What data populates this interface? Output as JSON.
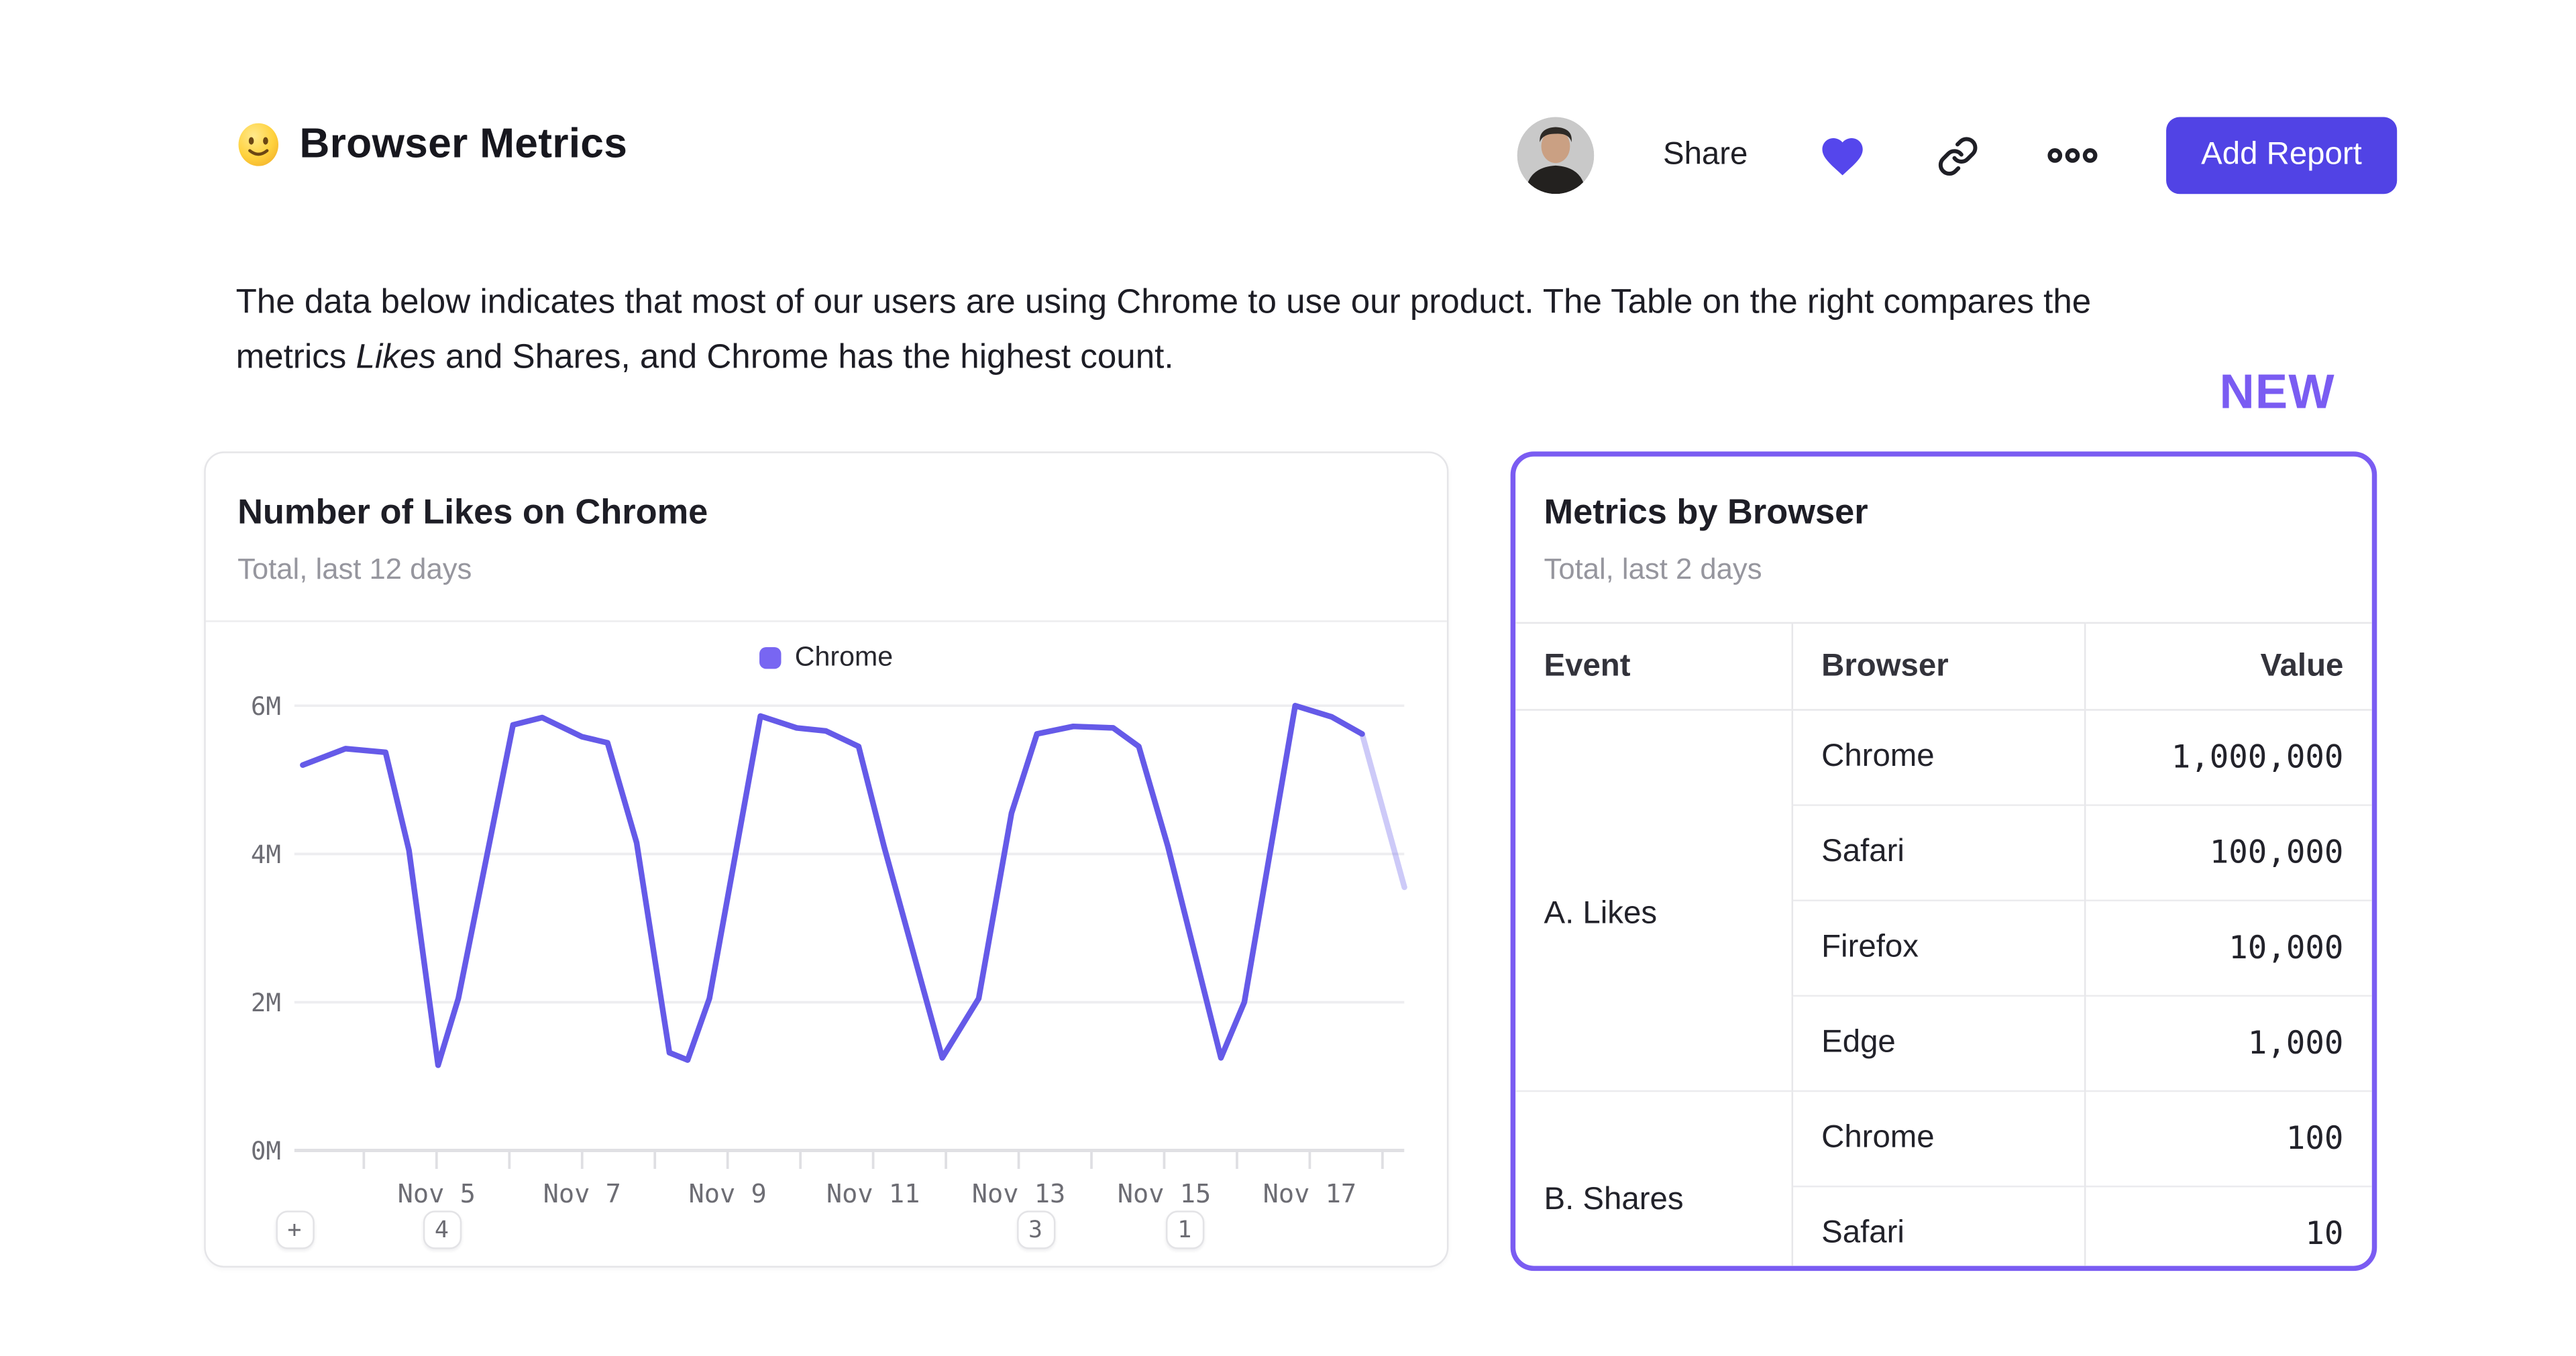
{
  "header": {
    "title": "Browser Metrics",
    "share_label": "Share",
    "add_report_label": "Add Report",
    "accent_color": "#5143E5"
  },
  "description": {
    "line1": "The data below indicates that most of our users are using Chrome to use our product. The Table on the right compares the",
    "line2_prefix": "metrics ",
    "italic_word": "Likes",
    "line2_end": " and Shares, and Chrome has the highest count."
  },
  "new_badge": "NEW",
  "chart_card": {
    "title": "Number of Likes on Chrome",
    "subtitle": "Total, last 12 days",
    "legend_label": "Chrome"
  },
  "chart_data": {
    "type": "line",
    "title": "Number of Likes on Chrome",
    "xlabel": "",
    "ylabel": "",
    "y_unit": "millions",
    "grid": true,
    "legend_position": "top-center",
    "line_color": "#655AE8",
    "faded_line_opacity": 0.32,
    "y_ticks": [
      {
        "v": 0,
        "label": "0M"
      },
      {
        "v": 2,
        "label": "2M"
      },
      {
        "v": 4,
        "label": "4M"
      },
      {
        "v": 6,
        "label": "6M"
      }
    ],
    "x_ticks": [
      {
        "day": 5,
        "label": "Nov 5"
      },
      {
        "day": 7,
        "label": "Nov 7"
      },
      {
        "day": 9,
        "label": "Nov 9"
      },
      {
        "day": 11,
        "label": "Nov 11"
      },
      {
        "day": 13,
        "label": "Nov 13"
      },
      {
        "day": 15,
        "label": "Nov 15"
      },
      {
        "day": 17,
        "label": "Nov 17"
      }
    ],
    "minor_tick_days": [
      4,
      5,
      6,
      7,
      8,
      9,
      10,
      11,
      12,
      13,
      14,
      15,
      16,
      17,
      18
    ],
    "x_range": [
      3.0,
      18.55
    ],
    "y_range": [
      0,
      6.55
    ],
    "series": [
      {
        "name": "Chrome",
        "points_day_value_millions": [
          [
            3.16,
            5.2
          ],
          [
            3.75,
            5.42
          ],
          [
            4.3,
            5.37
          ],
          [
            4.62,
            4.05
          ],
          [
            5.02,
            1.15
          ],
          [
            5.3,
            2.05
          ],
          [
            6.05,
            5.74
          ],
          [
            6.45,
            5.84
          ],
          [
            7.0,
            5.58
          ],
          [
            7.35,
            5.5
          ],
          [
            7.75,
            4.15
          ],
          [
            8.2,
            1.32
          ],
          [
            8.45,
            1.22
          ],
          [
            8.75,
            2.05
          ],
          [
            9.45,
            5.86
          ],
          [
            9.95,
            5.7
          ],
          [
            10.35,
            5.66
          ],
          [
            10.8,
            5.45
          ],
          [
            11.15,
            4.1
          ],
          [
            11.95,
            1.25
          ],
          [
            12.45,
            2.05
          ],
          [
            12.9,
            4.55
          ],
          [
            13.25,
            5.62
          ],
          [
            13.75,
            5.72
          ],
          [
            14.3,
            5.7
          ],
          [
            14.65,
            5.45
          ],
          [
            15.05,
            4.1
          ],
          [
            15.78,
            1.25
          ],
          [
            16.1,
            2.0
          ],
          [
            16.8,
            6.0
          ],
          [
            17.3,
            5.85
          ],
          [
            17.72,
            5.62
          ]
        ],
        "faded_tail_points": [
          [
            17.72,
            5.62
          ],
          [
            18.3,
            3.55
          ]
        ]
      }
    ],
    "axis_annotations": [
      {
        "label": "+",
        "day": null
      },
      {
        "label": "4",
        "day": 5.07
      },
      {
        "label": "3",
        "day": 13.23
      },
      {
        "label": "1",
        "day": 15.28
      }
    ]
  },
  "table_card": {
    "title": "Metrics by Browser",
    "subtitle": "Total, last 2 days",
    "border_color": "#7A5CF2",
    "columns": [
      "Event",
      "Browser",
      "Value"
    ],
    "groups": [
      {
        "event": "A. Likes",
        "rows": [
          [
            "Chrome",
            "1,000,000"
          ],
          [
            "Safari",
            "100,000"
          ],
          [
            "Firefox",
            "10,000"
          ],
          [
            "Edge",
            "1,000"
          ]
        ]
      },
      {
        "event": "B. Shares",
        "rows": [
          [
            "Chrome",
            "100"
          ],
          [
            "Safari",
            "10"
          ]
        ]
      }
    ]
  }
}
